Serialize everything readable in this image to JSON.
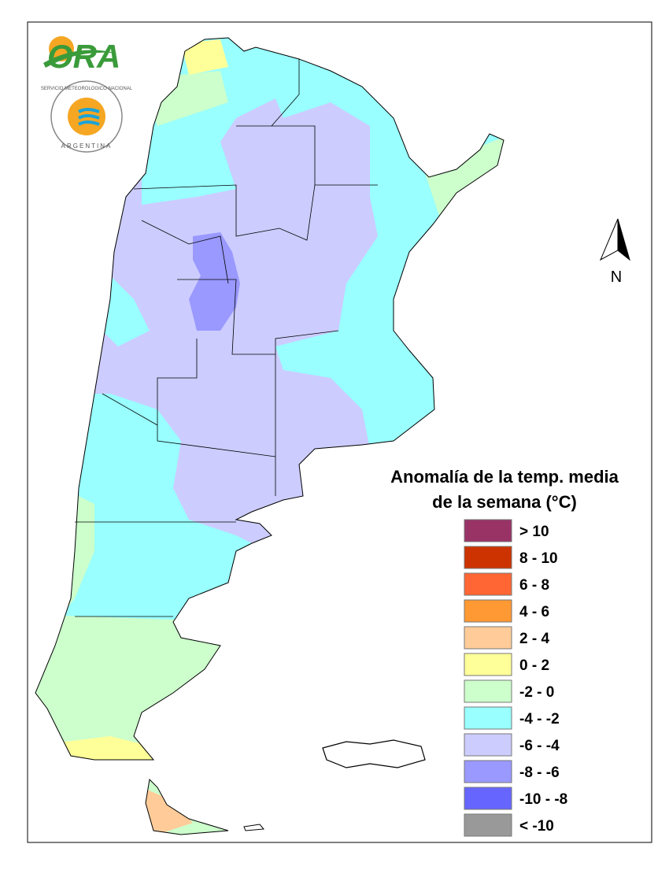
{
  "logo": {
    "ora": "ORA",
    "smn_ring": "SERVICIO METEOROLOGICO NACIONAL",
    "smn_country": "ARGENTINA"
  },
  "north_label": "N",
  "legend": {
    "title_lines": [
      "Anomalía de la temp. media",
      "de la semana (°C)"
    ],
    "items": [
      {
        "label": "> 10",
        "color": "#993366"
      },
      {
        "label": "8 - 10",
        "color": "#cc3300"
      },
      {
        "label": "6 - 8",
        "color": "#ff6633"
      },
      {
        "label": "4 - 6",
        "color": "#ff9933"
      },
      {
        "label": "2 - 4",
        "color": "#ffcc99"
      },
      {
        "label": "0 - 2",
        "color": "#ffff99"
      },
      {
        "label": "-2 - 0",
        "color": "#ccffcc"
      },
      {
        "label": "-4 - -2",
        "color": "#99ffff"
      },
      {
        "label": "-6 - -4",
        "color": "#ccccff"
      },
      {
        "label": "-8 - -6",
        "color": "#9999ff"
      },
      {
        "label": "-10 - -8",
        "color": "#6666ff"
      },
      {
        "label": "< -10",
        "color": "#999999"
      }
    ]
  }
}
